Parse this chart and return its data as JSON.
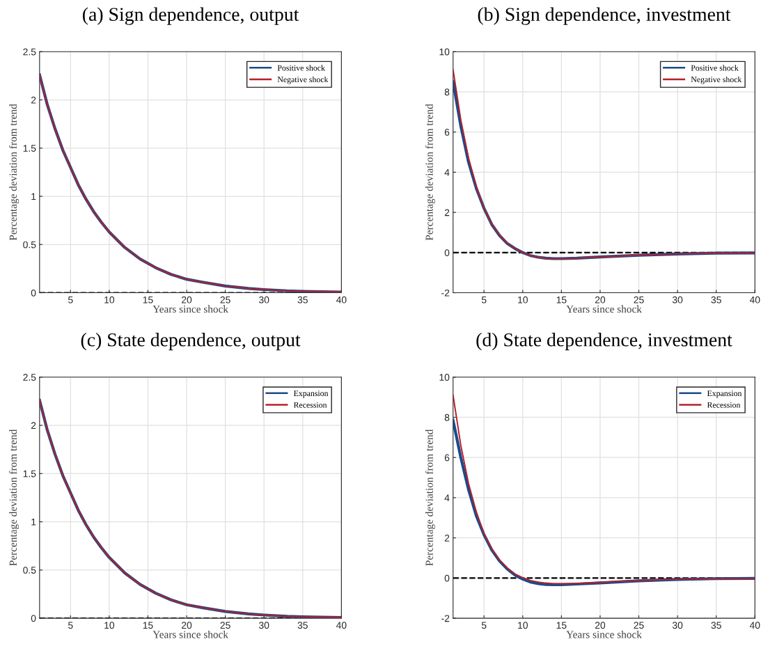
{
  "chart_data": [
    {
      "type": "line",
      "title": "(a) Sign dependence, output",
      "xlabel": "Years since shock",
      "ylabel": "Percentage deviation from trend",
      "xlim": [
        1,
        40
      ],
      "xticks": [
        5,
        10,
        15,
        20,
        25,
        30,
        35,
        40
      ],
      "ylim": [
        0,
        2.5
      ],
      "yticks": [
        0,
        0.5,
        1,
        1.5,
        2,
        2.5
      ],
      "grid": true,
      "legend": "top right",
      "line_style": "solid",
      "ref_lines": [
        {
          "axis": "y",
          "value": 0,
          "color": "#000000",
          "line_style": "dashed"
        }
      ],
      "x": [
        1,
        2,
        3,
        4,
        5,
        6,
        7,
        8,
        9,
        10,
        12,
        14,
        16,
        18,
        20,
        22,
        25,
        28,
        30,
        33,
        35,
        40
      ],
      "series": [
        {
          "name": "Positive shock",
          "color": "#1b4a8a",
          "values": [
            2.26,
            1.95,
            1.7,
            1.48,
            1.3,
            1.12,
            0.97,
            0.84,
            0.73,
            0.63,
            0.47,
            0.35,
            0.26,
            0.19,
            0.14,
            0.11,
            0.07,
            0.045,
            0.033,
            0.02,
            0.015,
            0.008
          ]
        },
        {
          "name": "Negative shock",
          "color": "#b5202a",
          "values": [
            2.26,
            1.95,
            1.7,
            1.48,
            1.3,
            1.12,
            0.97,
            0.84,
            0.73,
            0.63,
            0.47,
            0.35,
            0.26,
            0.19,
            0.14,
            0.11,
            0.07,
            0.045,
            0.033,
            0.02,
            0.015,
            0.008
          ]
        }
      ]
    },
    {
      "type": "line",
      "title": "(b) Sign dependence, investment",
      "xlabel": "Years since shock",
      "ylabel": "Percentage deviation from trend",
      "xlim": [
        1,
        40
      ],
      "xticks": [
        5,
        10,
        15,
        20,
        25,
        30,
        35,
        40
      ],
      "ylim": [
        -2,
        10
      ],
      "yticks": [
        -2,
        0,
        2,
        4,
        6,
        8,
        10
      ],
      "grid": true,
      "legend": "top right",
      "line_style": "solid",
      "ref_lines": [
        {
          "axis": "y",
          "value": 0,
          "color": "#000000",
          "line_style": "dashed"
        }
      ],
      "x": [
        1,
        2,
        3,
        4,
        5,
        6,
        7,
        8,
        9,
        10,
        11,
        12,
        13,
        14,
        15,
        17,
        20,
        25,
        30,
        35,
        40
      ],
      "series": [
        {
          "name": "Positive shock",
          "color": "#1b4a8a",
          "values": [
            8.5,
            6.3,
            4.5,
            3.2,
            2.2,
            1.4,
            0.85,
            0.45,
            0.2,
            0.0,
            -0.15,
            -0.23,
            -0.28,
            -0.3,
            -0.3,
            -0.28,
            -0.22,
            -0.13,
            -0.07,
            -0.03,
            -0.02
          ]
        },
        {
          "name": "Negative shock",
          "color": "#b5202a",
          "values": [
            9.1,
            6.6,
            4.7,
            3.3,
            2.2,
            1.4,
            0.87,
            0.47,
            0.2,
            0.0,
            -0.15,
            -0.23,
            -0.28,
            -0.3,
            -0.3,
            -0.28,
            -0.22,
            -0.13,
            -0.07,
            -0.03,
            -0.02
          ]
        }
      ]
    },
    {
      "type": "line",
      "title": "(c) State dependence, output",
      "xlabel": "Years since shock",
      "ylabel": "Percentage deviation from trend",
      "xlim": [
        1,
        40
      ],
      "xticks": [
        5,
        10,
        15,
        20,
        25,
        30,
        35,
        40
      ],
      "ylim": [
        0,
        2.5
      ],
      "yticks": [
        0,
        0.5,
        1,
        1.5,
        2,
        2.5
      ],
      "grid": true,
      "legend": "top right",
      "line_style": "solid",
      "ref_lines": [
        {
          "axis": "y",
          "value": 0,
          "color": "#000000",
          "line_style": "dashed"
        }
      ],
      "x": [
        1,
        2,
        3,
        4,
        5,
        6,
        7,
        8,
        9,
        10,
        12,
        14,
        16,
        18,
        20,
        22,
        25,
        28,
        30,
        33,
        35,
        40
      ],
      "series": [
        {
          "name": "Expansion",
          "color": "#1b4a8a",
          "values": [
            2.26,
            1.95,
            1.7,
            1.48,
            1.3,
            1.12,
            0.97,
            0.84,
            0.73,
            0.63,
            0.47,
            0.35,
            0.26,
            0.19,
            0.14,
            0.11,
            0.07,
            0.045,
            0.033,
            0.02,
            0.015,
            0.008
          ]
        },
        {
          "name": "Recession",
          "color": "#b5202a",
          "values": [
            2.26,
            1.95,
            1.7,
            1.48,
            1.3,
            1.12,
            0.97,
            0.84,
            0.73,
            0.63,
            0.47,
            0.35,
            0.26,
            0.19,
            0.14,
            0.11,
            0.07,
            0.045,
            0.033,
            0.02,
            0.015,
            0.008
          ]
        }
      ]
    },
    {
      "type": "line",
      "title": "(d) State dependence, investment",
      "xlabel": "Years since shock",
      "ylabel": "Percentage deviation from trend",
      "xlim": [
        1,
        40
      ],
      "xticks": [
        5,
        10,
        15,
        20,
        25,
        30,
        35,
        40
      ],
      "ylim": [
        -2,
        10
      ],
      "yticks": [
        -2,
        0,
        2,
        4,
        6,
        8,
        10
      ],
      "grid": true,
      "legend": "top right",
      "line_style": "solid",
      "ref_lines": [
        {
          "axis": "y",
          "value": 0,
          "color": "#000000",
          "line_style": "dashed"
        }
      ],
      "x": [
        1,
        2,
        3,
        4,
        5,
        6,
        7,
        8,
        9,
        10,
        11,
        12,
        13,
        14,
        15,
        17,
        20,
        25,
        30,
        35,
        40
      ],
      "series": [
        {
          "name": "Expansion",
          "color": "#1b4a8a",
          "values": [
            7.85,
            6.0,
            4.4,
            3.1,
            2.15,
            1.4,
            0.85,
            0.45,
            0.15,
            -0.05,
            -0.2,
            -0.28,
            -0.32,
            -0.33,
            -0.33,
            -0.3,
            -0.24,
            -0.14,
            -0.07,
            -0.03,
            -0.02
          ]
        },
        {
          "name": "Recession",
          "color": "#b5202a",
          "values": [
            9.1,
            6.6,
            4.7,
            3.3,
            2.2,
            1.45,
            0.9,
            0.5,
            0.2,
            0.02,
            -0.12,
            -0.2,
            -0.25,
            -0.28,
            -0.28,
            -0.27,
            -0.21,
            -0.12,
            -0.06,
            -0.03,
            -0.02
          ]
        }
      ]
    }
  ]
}
